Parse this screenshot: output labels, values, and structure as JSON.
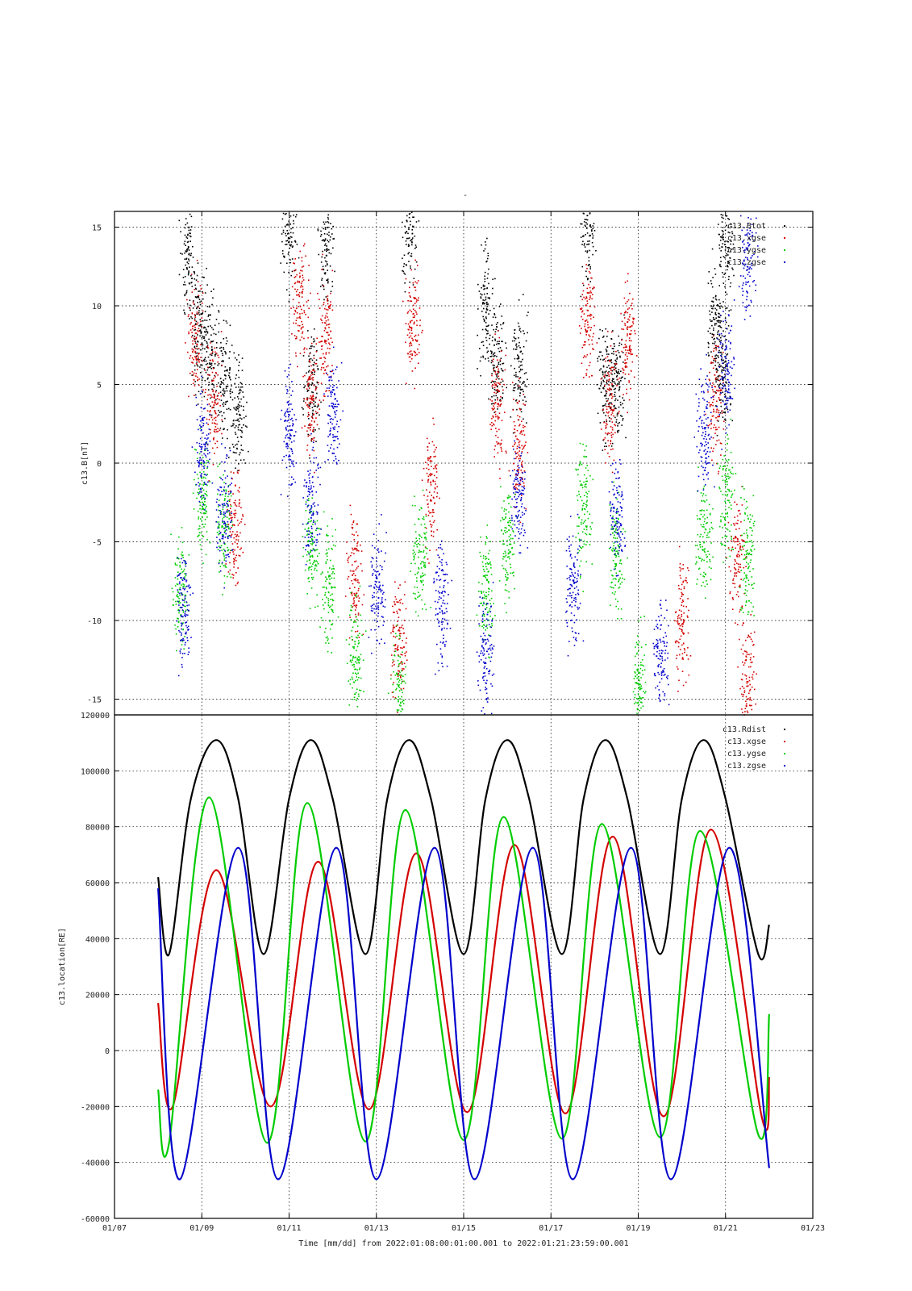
{
  "colors": {
    "black": "#000000",
    "red": "#d40000",
    "green": "#00cc00",
    "blue": "#0000cc"
  },
  "chart_data": [
    {
      "type": "scatter",
      "title": "-",
      "ylabel": "c13.B[nT]",
      "xlabel": "",
      "ylim": [
        -16,
        16
      ],
      "yticks": [
        -15,
        -10,
        -5,
        0,
        5,
        10,
        15
      ],
      "grid": true,
      "legend_position": "top-right",
      "legend": [
        "c13.Btot",
        "c13.xgse",
        "c13.ygse",
        "c13.zgse"
      ],
      "series": [
        {
          "name": "c13.Btot",
          "color": "#000000",
          "points": [
            [
              "01/08 16:00",
              13
            ],
            [
              "01/08 22:00",
              9
            ],
            [
              "01/09 04:00",
              7
            ],
            [
              "01/09 12:00",
              5
            ],
            [
              "01/09 20:00",
              3
            ],
            [
              "01/11 00:00",
              15
            ],
            [
              "01/11 12:00",
              5
            ],
            [
              "01/11 20:00",
              14
            ],
            [
              "01/13 18:00",
              15
            ],
            [
              "01/15 12:00",
              10
            ],
            [
              "01/15 18:00",
              7
            ],
            [
              "01/16 06:00",
              6
            ],
            [
              "01/17 20:00",
              15
            ],
            [
              "01/18 06:00",
              5
            ],
            [
              "01/18 12:00",
              5
            ],
            [
              "01/20 18:00",
              9
            ],
            [
              "01/20 22:00",
              6
            ],
            [
              "01/21 00:00",
              14
            ]
          ]
        },
        {
          "name": "c13.xgse",
          "color": "#d40000",
          "points": [
            [
              "01/08 20:00",
              8
            ],
            [
              "01/09 06:00",
              4
            ],
            [
              "01/09 18:00",
              -4
            ],
            [
              "01/11 06:00",
              10
            ],
            [
              "01/11 12:00",
              4
            ],
            [
              "01/11 20:00",
              8
            ],
            [
              "01/12 12:00",
              -7
            ],
            [
              "01/13 12:00",
              -11
            ],
            [
              "01/13 20:00",
              9
            ],
            [
              "01/14 06:00",
              -2
            ],
            [
              "01/15 18:00",
              4
            ],
            [
              "01/16 06:00",
              1
            ],
            [
              "01/17 20:00",
              9
            ],
            [
              "01/18 08:00",
              4
            ],
            [
              "01/18 18:00",
              8
            ],
            [
              "01/20 00:00",
              -10
            ],
            [
              "01/20 18:00",
              4
            ],
            [
              "01/21 06:00",
              -6
            ],
            [
              "01/21 12:00",
              -14
            ]
          ]
        },
        {
          "name": "c13.ygse",
          "color": "#00cc00",
          "points": [
            [
              "01/08 12:00",
              -8
            ],
            [
              "01/09 00:00",
              -2
            ],
            [
              "01/09 12:00",
              -4
            ],
            [
              "01/11 12:00",
              -5
            ],
            [
              "01/11 22:00",
              -8
            ],
            [
              "01/12 12:00",
              -12
            ],
            [
              "01/13 12:00",
              -15
            ],
            [
              "01/14 00:00",
              -6
            ],
            [
              "01/15 12:00",
              -8
            ],
            [
              "01/16 00:00",
              -5
            ],
            [
              "01/17 18:00",
              -3
            ],
            [
              "01/18 12:00",
              -6
            ],
            [
              "01/19 00:00",
              -14
            ],
            [
              "01/20 12:00",
              -5
            ],
            [
              "01/21 00:00",
              -2
            ],
            [
              "01/21 12:00",
              -6
            ]
          ]
        },
        {
          "name": "c13.zgse",
          "color": "#0000cc",
          "points": [
            [
              "01/08 14:00",
              -9
            ],
            [
              "01/09 00:00",
              1
            ],
            [
              "01/09 12:00",
              -3
            ],
            [
              "01/11 00:00",
              2
            ],
            [
              "01/11 12:00",
              -2
            ],
            [
              "01/12 00:00",
              3
            ],
            [
              "01/13 00:00",
              -8
            ],
            [
              "01/14 12:00",
              -9
            ],
            [
              "01/15 12:00",
              -12
            ],
            [
              "01/16 06:00",
              -2
            ],
            [
              "01/17 12:00",
              -8
            ],
            [
              "01/18 12:00",
              -3
            ],
            [
              "01/19 12:00",
              -12
            ],
            [
              "01/20 12:00",
              2
            ],
            [
              "01/21 00:00",
              6
            ],
            [
              "01/21 12:00",
              13
            ]
          ]
        }
      ]
    },
    {
      "type": "line",
      "ylabel": "c13.location[RE]",
      "xlabel": "Time [mm/dd]  from 2022:01:08:00:01:00.001  to  2022:01:21:23:59:00.001",
      "ylim": [
        -60000,
        120000
      ],
      "yticks": [
        -60000,
        -40000,
        -20000,
        0,
        20000,
        40000,
        60000,
        80000,
        100000,
        120000
      ],
      "xticks": [
        "01/07",
        "01/09",
        "01/11",
        "01/13",
        "01/15",
        "01/17",
        "01/19",
        "01/21",
        "01/23"
      ],
      "xlim": [
        "01/07",
        "01/23"
      ],
      "grid": true,
      "legend_position": "top-right",
      "legend": [
        "c13.Rdist",
        "c13.xgse",
        "c13.ygse",
        "c13.zgse"
      ],
      "series": [
        {
          "name": "c13.Rdist",
          "color": "#000000",
          "points": [
            [
              "01/08 00:00",
              62000
            ],
            [
              "01/08 06:00",
              34500
            ],
            [
              "01/08 18:00",
              90000
            ],
            [
              "01/09 08:00",
              111000
            ],
            [
              "01/09 20:00",
              90000
            ],
            [
              "01/10 10:00",
              34500
            ],
            [
              "01/11 00:00",
              90000
            ],
            [
              "01/11 12:00",
              111000
            ],
            [
              "01/12 00:00",
              90000
            ],
            [
              "01/12 18:00",
              34500
            ],
            [
              "01/13 06:00",
              90000
            ],
            [
              "01/13 18:00",
              111000
            ],
            [
              "01/14 06:00",
              90000
            ],
            [
              "01/15 00:00",
              34500
            ],
            [
              "01/15 12:00",
              90000
            ],
            [
              "01/16 00:00",
              111000
            ],
            [
              "01/16 12:00",
              90000
            ],
            [
              "01/17 06:00",
              34500
            ],
            [
              "01/17 18:00",
              90000
            ],
            [
              "01/18 06:00",
              111000
            ],
            [
              "01/18 18:00",
              90000
            ],
            [
              "01/19 12:00",
              34500
            ],
            [
              "01/20 00:00",
              90000
            ],
            [
              "01/20 12:00",
              111000
            ],
            [
              "01/21 00:00",
              90000
            ],
            [
              "01/21 18:00",
              34500
            ],
            [
              "01/22 00:00",
              45000
            ]
          ]
        },
        {
          "name": "c13.xgse",
          "color": "#d40000",
          "points": [
            [
              "01/08 00:00",
              17000
            ],
            [
              "01/08 08:00",
              -20000
            ],
            [
              "01/09 08:00",
              64500
            ],
            [
              "01/10 14:00",
              -20000
            ],
            [
              "01/11 16:00",
              67500
            ],
            [
              "01/12 20:00",
              -21000
            ],
            [
              "01/13 22:00",
              70500
            ],
            [
              "01/15 02:00",
              -22000
            ],
            [
              "01/16 04:00",
              73500
            ],
            [
              "01/17 08:00",
              -22500
            ],
            [
              "01/18 10:00",
              76500
            ],
            [
              "01/19 14:00",
              -23500
            ],
            [
              "01/20 16:00",
              79000
            ],
            [
              "01/21 20:00",
              -24000
            ],
            [
              "01/22 00:00",
              -9500
            ]
          ]
        },
        {
          "name": "c13.ygse",
          "color": "#00cc00",
          "points": [
            [
              "01/08 00:00",
              -14000
            ],
            [
              "01/08 06:00",
              -33000
            ],
            [
              "01/09 04:00",
              90500
            ],
            [
              "01/10 12:00",
              -33000
            ],
            [
              "01/11 10:00",
              88500
            ],
            [
              "01/12 18:00",
              -32500
            ],
            [
              "01/13 16:00",
              86000
            ],
            [
              "01/15 00:00",
              -32000
            ],
            [
              "01/15 22:00",
              83500
            ],
            [
              "01/17 06:00",
              -31500
            ],
            [
              "01/18 04:00",
              81000
            ],
            [
              "01/19 12:00",
              -31000
            ],
            [
              "01/20 10:00",
              78500
            ],
            [
              "01/21 18:00",
              -30000
            ],
            [
              "01/22 00:00",
              13000
            ]
          ]
        },
        {
          "name": "c13.zgse",
          "color": "#0000cc",
          "points": [
            [
              "01/08 00:00",
              58000
            ],
            [
              "01/08 12:00",
              -46000
            ],
            [
              "01/09 20:00",
              72500
            ],
            [
              "01/10 18:00",
              -46000
            ],
            [
              "01/12 02:00",
              72500
            ],
            [
              "01/13 00:00",
              -46000
            ],
            [
              "01/14 08:00",
              72500
            ],
            [
              "01/15 06:00",
              -46000
            ],
            [
              "01/16 14:00",
              72500
            ],
            [
              "01/17 12:00",
              -46000
            ],
            [
              "01/18 20:00",
              72500
            ],
            [
              "01/19 18:00",
              -46000
            ],
            [
              "01/21 02:00",
              72500
            ],
            [
              "01/22 00:00",
              -42000
            ]
          ]
        }
      ]
    }
  ]
}
